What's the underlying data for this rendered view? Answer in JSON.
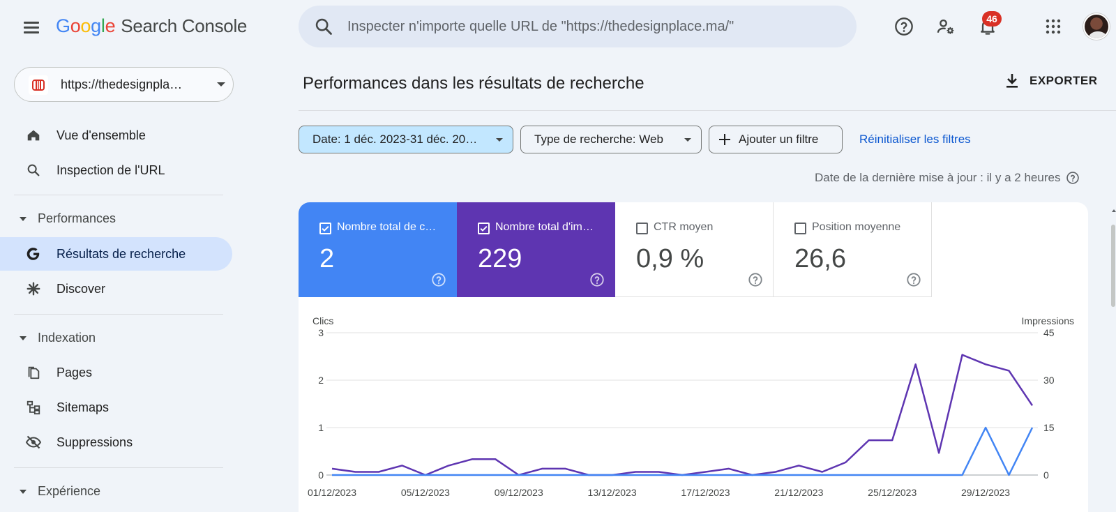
{
  "header": {
    "logo_letters": [
      {
        "ch": "G",
        "color": "#4285f4"
      },
      {
        "ch": "o",
        "color": "#ea4335"
      },
      {
        "ch": "o",
        "color": "#fbbc05"
      },
      {
        "ch": "g",
        "color": "#4285f4"
      },
      {
        "ch": "l",
        "color": "#34a853"
      },
      {
        "ch": "e",
        "color": "#ea4335"
      }
    ],
    "product": "Search Console",
    "search_placeholder": "Inspecter n'importe quelle URL de \"https://thedesignplace.ma/\"",
    "notifications_count": "46",
    "icons": [
      "menu-icon",
      "search-icon",
      "help-icon",
      "manage-users-icon",
      "bell-icon",
      "apps-icon",
      "avatar"
    ]
  },
  "sidebar": {
    "property": "https://thedesignpla…",
    "items": [
      {
        "name": "overview",
        "label": "Vue d'ensemble",
        "icon": "home-icon"
      },
      {
        "name": "url-inspection",
        "label": "Inspection de l'URL",
        "icon": "search-icon"
      }
    ],
    "sections": [
      {
        "name": "performances",
        "label": "Performances",
        "items": [
          {
            "name": "search-results",
            "label": "Résultats de recherche",
            "icon": "google-g-icon",
            "active": true
          },
          {
            "name": "discover",
            "label": "Discover",
            "icon": "asterisk-icon"
          }
        ]
      },
      {
        "name": "indexation",
        "label": "Indexation",
        "items": [
          {
            "name": "pages",
            "label": "Pages",
            "icon": "pages-icon"
          },
          {
            "name": "sitemaps",
            "label": "Sitemaps",
            "icon": "sitemap-icon"
          },
          {
            "name": "removals",
            "label": "Suppressions",
            "icon": "eye-off-icon"
          }
        ]
      },
      {
        "name": "experience",
        "label": "Expérience",
        "items": []
      }
    ]
  },
  "main": {
    "title": "Performances dans les résultats de recherche",
    "export_label": "EXPORTER",
    "filters": {
      "date": "Date: 1 déc. 2023-31 déc. 20…",
      "search_type": "Type de recherche: Web",
      "add_filter": "Ajouter un filtre",
      "reset": "Réinitialiser les filtres"
    },
    "last_update": "Date de la dernière mise à jour : il y a 2 heures",
    "metrics": [
      {
        "name": "total-clicks",
        "label": "Nombre total de c…",
        "value": "2",
        "checked": true,
        "color": "#4285f4"
      },
      {
        "name": "total-impressions",
        "label": "Nombre total d'im…",
        "value": "229",
        "checked": true,
        "color": "#5e35b1"
      },
      {
        "name": "avg-ctr",
        "label": "CTR moyen",
        "value": "0,9 %",
        "checked": false
      },
      {
        "name": "avg-position",
        "label": "Position moyenne",
        "value": "26,6",
        "checked": false
      }
    ]
  },
  "chart_data": {
    "type": "line",
    "x": [
      "01/12/2023",
      "02/12/2023",
      "03/12/2023",
      "04/12/2023",
      "05/12/2023",
      "06/12/2023",
      "07/12/2023",
      "08/12/2023",
      "09/12/2023",
      "10/12/2023",
      "11/12/2023",
      "12/12/2023",
      "13/12/2023",
      "14/12/2023",
      "15/12/2023",
      "16/12/2023",
      "17/12/2023",
      "18/12/2023",
      "19/12/2023",
      "20/12/2023",
      "21/12/2023",
      "22/12/2023",
      "23/12/2023",
      "24/12/2023",
      "25/12/2023",
      "26/12/2023",
      "27/12/2023",
      "28/12/2023",
      "29/12/2023",
      "30/12/2023",
      "31/12/2023"
    ],
    "x_tick_labels": [
      "01/12/2023",
      "05/12/2023",
      "09/12/2023",
      "13/12/2023",
      "17/12/2023",
      "21/12/2023",
      "25/12/2023",
      "29/12/2023"
    ],
    "series": [
      {
        "name": "Clics",
        "axis": "left",
        "color": "#4285f4",
        "values": [
          0,
          0,
          0,
          0,
          0,
          0,
          0,
          0,
          0,
          0,
          0,
          0,
          0,
          0,
          0,
          0,
          0,
          0,
          0,
          0,
          0,
          0,
          0,
          0,
          0,
          0,
          0,
          0,
          1,
          0,
          1
        ]
      },
      {
        "name": "Impressions",
        "axis": "right",
        "color": "#5e35b1",
        "values": [
          2,
          1,
          1,
          3,
          0,
          3,
          5,
          5,
          0,
          2,
          2,
          0,
          0,
          1,
          1,
          0,
          1,
          2,
          0,
          1,
          3,
          1,
          4,
          11,
          11,
          35,
          7,
          38,
          35,
          33,
          22
        ]
      }
    ],
    "ylabel_left": "Clics",
    "ylabel_right": "Impressions",
    "ylim_left": [
      0,
      3
    ],
    "ylim_right": [
      0,
      45
    ],
    "yticks_left": [
      "0",
      "1",
      "2",
      "3"
    ],
    "yticks_right": [
      "0",
      "15",
      "30",
      "45"
    ],
    "grid": true
  }
}
